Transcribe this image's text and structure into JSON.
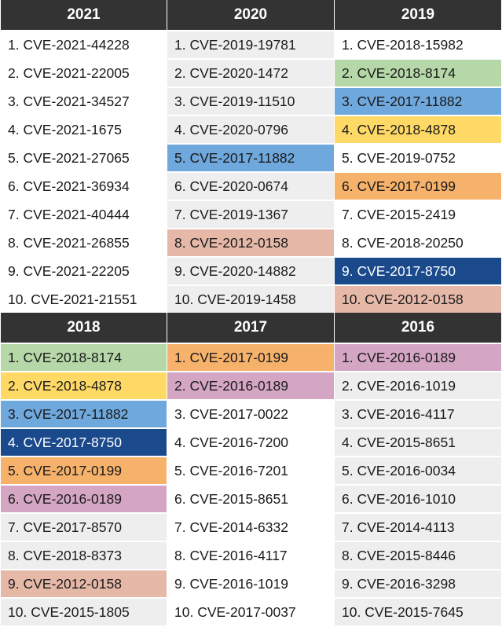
{
  "colors": {
    "white": "#ffffff",
    "gray": "#eeeeef",
    "green": "#b6d7a8",
    "blue": "#6fa8dc",
    "yellow": "#ffd966",
    "orange": "#f6b26b",
    "navy": "#1b4a8c",
    "salmon": "#e6b8a8",
    "purple": "#d5a6c4"
  },
  "blocks": [
    {
      "columns": [
        {
          "year": "2021",
          "items": [
            {
              "text": "1. CVE-2021-44228",
              "color": "white"
            },
            {
              "text": "2. CVE-2021-22005",
              "color": "white"
            },
            {
              "text": "3. CVE-2021-34527",
              "color": "white"
            },
            {
              "text": "4. CVE-2021-1675",
              "color": "white"
            },
            {
              "text": "5. CVE-2021-27065",
              "color": "white"
            },
            {
              "text": "6. CVE-2021-36934",
              "color": "white"
            },
            {
              "text": "7. CVE-2021-40444",
              "color": "white"
            },
            {
              "text": "8. CVE-2021-26855",
              "color": "white"
            },
            {
              "text": "9. CVE-2021-22205",
              "color": "white"
            },
            {
              "text": "10. CVE-2021-21551",
              "color": "white"
            }
          ]
        },
        {
          "year": "2020",
          "items": [
            {
              "text": "1. CVE-2019-19781",
              "color": "gray"
            },
            {
              "text": "2. CVE-2020-1472",
              "color": "gray"
            },
            {
              "text": "3. CVE-2019-11510",
              "color": "gray"
            },
            {
              "text": "4. CVE-2020-0796",
              "color": "gray"
            },
            {
              "text": "5. CVE-2017-11882",
              "color": "blue"
            },
            {
              "text": "6. CVE-2020-0674",
              "color": "gray"
            },
            {
              "text": "7. CVE-2019-1367",
              "color": "gray"
            },
            {
              "text": "8. CVE-2012-0158",
              "color": "salmon"
            },
            {
              "text": "9. CVE-2020-14882",
              "color": "gray"
            },
            {
              "text": "10. CVE-2019-1458",
              "color": "gray"
            }
          ]
        },
        {
          "year": "2019",
          "items": [
            {
              "text": "1. CVE-2018-15982",
              "color": "white"
            },
            {
              "text": "2. CVE-2018-8174",
              "color": "green"
            },
            {
              "text": "3. CVE-2017-11882",
              "color": "blue"
            },
            {
              "text": "4. CVE-2018-4878",
              "color": "yellow"
            },
            {
              "text": "5. CVE-2019-0752",
              "color": "white"
            },
            {
              "text": "6. CVE-2017-0199",
              "color": "orange"
            },
            {
              "text": "7. CVE-2015-2419",
              "color": "white"
            },
            {
              "text": "8. CVE-2018-20250",
              "color": "white"
            },
            {
              "text": "9. CVE-2017-8750",
              "color": "navy"
            },
            {
              "text": "10. CVE-2012-0158",
              "color": "salmon"
            }
          ]
        }
      ]
    },
    {
      "columns": [
        {
          "year": "2018",
          "items": [
            {
              "text": "1. CVE-2018-8174",
              "color": "green"
            },
            {
              "text": "2. CVE-2018-4878",
              "color": "yellow"
            },
            {
              "text": "3. CVE-2017-11882",
              "color": "blue"
            },
            {
              "text": "4. CVE-2017-8750",
              "color": "navy"
            },
            {
              "text": "5. CVE-2017-0199",
              "color": "orange"
            },
            {
              "text": "6. CVE-2016-0189",
              "color": "purple"
            },
            {
              "text": "7. CVE-2017-8570",
              "color": "gray"
            },
            {
              "text": "8. CVE-2018-8373",
              "color": "gray"
            },
            {
              "text": "9. CVE-2012-0158",
              "color": "salmon"
            },
            {
              "text": "10. CVE-2015-1805",
              "color": "gray"
            }
          ]
        },
        {
          "year": "2017",
          "items": [
            {
              "text": "1. CVE-2017-0199",
              "color": "orange"
            },
            {
              "text": "2. CVE-2016-0189",
              "color": "purple"
            },
            {
              "text": "3. CVE-2017-0022",
              "color": "white"
            },
            {
              "text": "4. CVE-2016-7200",
              "color": "white"
            },
            {
              "text": "5. CVE-2016-7201",
              "color": "white"
            },
            {
              "text": "6. CVE-2015-8651",
              "color": "white"
            },
            {
              "text": "7. CVE-2014-6332",
              "color": "white"
            },
            {
              "text": "8. CVE-2016-4117",
              "color": "white"
            },
            {
              "text": "9. CVE-2016-1019",
              "color": "white"
            },
            {
              "text": "10. CVE-2017-0037",
              "color": "white"
            }
          ]
        },
        {
          "year": "2016",
          "items": [
            {
              "text": "1. CVE-2016-0189",
              "color": "purple"
            },
            {
              "text": "2. CVE-2016-1019",
              "color": "gray"
            },
            {
              "text": "3. CVE-2016-4117",
              "color": "gray"
            },
            {
              "text": "4. CVE-2015-8651",
              "color": "gray"
            },
            {
              "text": "5. CVE-2016-0034",
              "color": "gray"
            },
            {
              "text": "6. CVE-2016-1010",
              "color": "gray"
            },
            {
              "text": "7. CVE-2014-4113",
              "color": "gray"
            },
            {
              "text": "8. CVE-2015-8446",
              "color": "gray"
            },
            {
              "text": "9. CVE-2016-3298",
              "color": "gray"
            },
            {
              "text": "10. CVE-2015-7645",
              "color": "gray"
            }
          ]
        }
      ]
    }
  ]
}
